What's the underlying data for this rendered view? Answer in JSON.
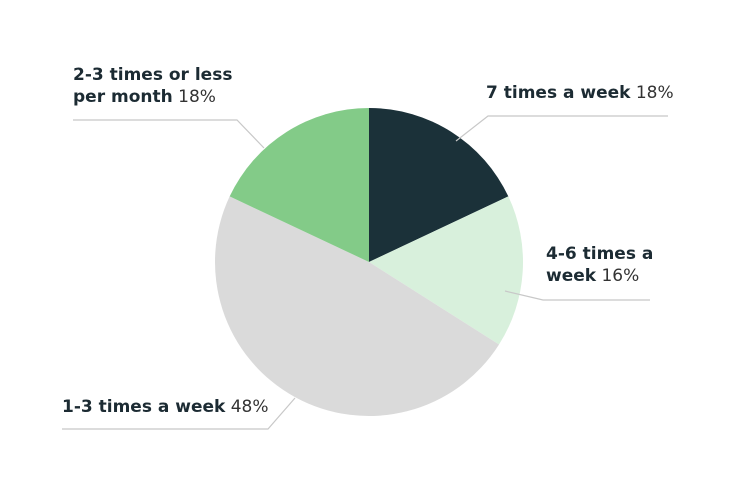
{
  "chart_data": {
    "type": "pie",
    "title": "",
    "slices": [
      {
        "label": "7 times a week",
        "value": 18,
        "value_label": "18%",
        "color": "#1b3139"
      },
      {
        "label": "4-6 times a week",
        "value": 16,
        "value_label": "16%",
        "color": "#d8f0dc"
      },
      {
        "label": "1-3 times a week",
        "value": 48,
        "value_label": "48%",
        "color": "#dadada"
      },
      {
        "label": "2-3 times or less per month",
        "value": 18,
        "value_label": "18%",
        "color": "#83cb88"
      }
    ],
    "start": "12 o'clock",
    "direction": "clockwise",
    "legend": "none",
    "label_style": "callout lines",
    "leader_color": "#c8c8c8"
  }
}
